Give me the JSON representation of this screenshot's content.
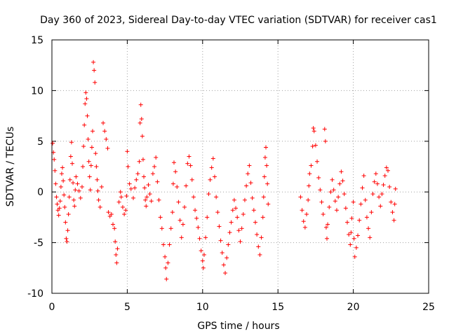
{
  "chart_data": {
    "type": "scatter",
    "title": "Day 360 of 2023, Sidereal Day-to-day VTEC variation (SDTVAR) for receiver cas1",
    "xlabel": "GPS time / hours",
    "ylabel": "SDTVAR / TECUs",
    "xlim": [
      0,
      25
    ],
    "ylim": [
      -10,
      15
    ],
    "xticks": [
      "0",
      "5",
      "10",
      "15",
      "20",
      "25"
    ],
    "yticks": [
      "-10",
      "-5",
      "0",
      "5",
      "10",
      "15"
    ],
    "grid": true,
    "marker": "+",
    "color": "#ff0000",
    "series": [
      {
        "name": "SDTVAR",
        "points": [
          [
            0.05,
            4.8
          ],
          [
            0.1,
            3.9
          ],
          [
            0.15,
            3.2
          ],
          [
            0.2,
            2.1
          ],
          [
            0.25,
            0.8
          ],
          [
            0.3,
            -0.5
          ],
          [
            0.35,
            -1.2
          ],
          [
            0.4,
            -1.8
          ],
          [
            0.45,
            -2.3
          ],
          [
            0.5,
            -1.6
          ],
          [
            0.55,
            -0.9
          ],
          [
            0.6,
            0.5
          ],
          [
            0.65,
            1.8
          ],
          [
            0.7,
            2.4
          ],
          [
            0.75,
            1.1
          ],
          [
            0.8,
            -0.3
          ],
          [
            0.85,
            -1.5
          ],
          [
            0.9,
            -3.0
          ],
          [
            0.95,
            -4.6
          ],
          [
            1.0,
            -4.9
          ],
          [
            1.05,
            -3.8
          ],
          [
            1.1,
            -2.2
          ],
          [
            1.15,
            -0.5
          ],
          [
            1.2,
            1.2
          ],
          [
            1.25,
            3.5
          ],
          [
            1.3,
            4.9
          ],
          [
            1.35,
            2.8
          ],
          [
            1.4,
            0.9
          ],
          [
            1.45,
            -0.8
          ],
          [
            1.5,
            -1.4
          ],
          [
            1.55,
            0.2
          ],
          [
            1.6,
            1.5
          ],
          [
            1.7,
            0.8
          ],
          [
            1.8,
            0.1
          ],
          [
            1.9,
            -0.6
          ],
          [
            2.0,
            0.5
          ],
          [
            2.05,
            2.5
          ],
          [
            2.1,
            4.5
          ],
          [
            2.15,
            6.6
          ],
          [
            2.2,
            8.7
          ],
          [
            2.25,
            9.8
          ],
          [
            2.3,
            9.2
          ],
          [
            2.35,
            7.5
          ],
          [
            2.4,
            5.2
          ],
          [
            2.45,
            3.0
          ],
          [
            2.5,
            1.5
          ],
          [
            2.55,
            0.2
          ],
          [
            2.6,
            2.6
          ],
          [
            2.65,
            4.4
          ],
          [
            2.7,
            6.0
          ],
          [
            2.75,
            12.8
          ],
          [
            2.8,
            12.0
          ],
          [
            2.85,
            10.8
          ],
          [
            2.9,
            3.8
          ],
          [
            2.95,
            2.5
          ],
          [
            3.0,
            1.2
          ],
          [
            3.05,
            0.1
          ],
          [
            3.1,
            -0.8
          ],
          [
            3.2,
            -1.5
          ],
          [
            3.3,
            0.5
          ],
          [
            3.4,
            6.8
          ],
          [
            3.5,
            6.0
          ],
          [
            3.6,
            5.2
          ],
          [
            3.7,
            4.3
          ],
          [
            3.75,
            -2.0
          ],
          [
            3.85,
            -2.4
          ],
          [
            3.95,
            -2.2
          ],
          [
            4.05,
            -3.2
          ],
          [
            4.15,
            -3.6
          ],
          [
            4.2,
            -4.9
          ],
          [
            4.25,
            -6.2
          ],
          [
            4.3,
            -7.0
          ],
          [
            4.35,
            -5.6
          ],
          [
            4.45,
            -1.0
          ],
          [
            4.55,
            0.0
          ],
          [
            4.6,
            -0.5
          ],
          [
            4.7,
            -1.5
          ],
          [
            4.8,
            -2.2
          ],
          [
            4.9,
            -1.8
          ],
          [
            4.95,
            -0.4
          ],
          [
            5.0,
            4.0
          ],
          [
            5.05,
            2.5
          ],
          [
            5.15,
            0.8
          ],
          [
            5.25,
            0.3
          ],
          [
            5.4,
            -0.6
          ],
          [
            5.5,
            0.4
          ],
          [
            5.6,
            1.2
          ],
          [
            5.7,
            1.8
          ],
          [
            5.8,
            3.0
          ],
          [
            5.85,
            6.8
          ],
          [
            5.9,
            8.6
          ],
          [
            5.95,
            7.2
          ],
          [
            6.0,
            5.5
          ],
          [
            6.05,
            3.2
          ],
          [
            6.1,
            1.5
          ],
          [
            6.15,
            0.4
          ],
          [
            6.2,
            -0.8
          ],
          [
            6.25,
            -1.4
          ],
          [
            6.3,
            -0.5
          ],
          [
            6.4,
            0.7
          ],
          [
            6.5,
            -0.2
          ],
          [
            6.6,
            -0.9
          ],
          [
            6.7,
            1.8
          ],
          [
            6.8,
            2.5
          ],
          [
            6.9,
            3.4
          ],
          [
            7.0,
            1.0
          ],
          [
            7.1,
            -0.8
          ],
          [
            7.2,
            -2.5
          ],
          [
            7.3,
            -3.6
          ],
          [
            7.4,
            -5.2
          ],
          [
            7.5,
            -6.4
          ],
          [
            7.55,
            -7.5
          ],
          [
            7.6,
            -8.6
          ],
          [
            7.7,
            -7.0
          ],
          [
            7.8,
            -5.2
          ],
          [
            7.9,
            -3.6
          ],
          [
            8.0,
            -2.0
          ],
          [
            8.05,
            0.8
          ],
          [
            8.1,
            2.9
          ],
          [
            8.2,
            2.0
          ],
          [
            8.3,
            0.5
          ],
          [
            8.4,
            -1.0
          ],
          [
            8.5,
            -2.8
          ],
          [
            8.6,
            -4.5
          ],
          [
            8.7,
            -3.2
          ],
          [
            8.8,
            -1.5
          ],
          [
            8.9,
            0.6
          ],
          [
            9.0,
            2.8
          ],
          [
            9.1,
            3.5
          ],
          [
            9.2,
            2.6
          ],
          [
            9.3,
            1.2
          ],
          [
            9.4,
            -0.5
          ],
          [
            9.5,
            -1.8
          ],
          [
            9.6,
            -2.6
          ],
          [
            9.7,
            -3.5
          ],
          [
            9.8,
            -4.6
          ],
          [
            9.9,
            -5.8
          ],
          [
            10.0,
            -6.8
          ],
          [
            10.05,
            -7.5
          ],
          [
            10.1,
            -6.2
          ],
          [
            10.2,
            -4.5
          ],
          [
            10.3,
            -2.5
          ],
          [
            10.4,
            -0.2
          ],
          [
            10.5,
            1.2
          ],
          [
            10.6,
            2.4
          ],
          [
            10.7,
            3.3
          ],
          [
            10.8,
            1.5
          ],
          [
            10.9,
            -0.5
          ],
          [
            11.0,
            -2.0
          ],
          [
            11.1,
            -3.4
          ],
          [
            11.2,
            -4.8
          ],
          [
            11.3,
            -6.0
          ],
          [
            11.4,
            -7.2
          ],
          [
            11.5,
            -8.0
          ],
          [
            11.6,
            -6.5
          ],
          [
            11.7,
            -5.2
          ],
          [
            11.8,
            -4.0
          ],
          [
            11.9,
            -3.0
          ],
          [
            12.0,
            -1.8
          ],
          [
            12.1,
            -0.8
          ],
          [
            12.2,
            -1.6
          ],
          [
            12.3,
            -2.5
          ],
          [
            12.4,
            -3.8
          ],
          [
            12.5,
            -4.9
          ],
          [
            12.6,
            -3.6
          ],
          [
            12.7,
            -2.2
          ],
          [
            12.8,
            -0.8
          ],
          [
            12.9,
            0.6
          ],
          [
            13.0,
            1.8
          ],
          [
            13.1,
            2.6
          ],
          [
            13.2,
            0.9
          ],
          [
            13.3,
            -0.6
          ],
          [
            13.4,
            -1.8
          ],
          [
            13.5,
            -3.0
          ],
          [
            13.6,
            -4.2
          ],
          [
            13.7,
            -5.4
          ],
          [
            13.8,
            -6.2
          ],
          [
            13.9,
            -4.5
          ],
          [
            14.0,
            -2.5
          ],
          [
            14.05,
            -0.5
          ],
          [
            14.1,
            1.5
          ],
          [
            14.15,
            3.4
          ],
          [
            14.2,
            4.4
          ],
          [
            14.25,
            2.6
          ],
          [
            14.3,
            0.8
          ],
          [
            14.35,
            -1.2
          ],
          [
            16.5,
            -0.5
          ],
          [
            16.6,
            -1.8
          ],
          [
            16.7,
            -2.9
          ],
          [
            16.8,
            -3.5
          ],
          [
            16.9,
            -2.2
          ],
          [
            17.0,
            -0.8
          ],
          [
            17.05,
            0.6
          ],
          [
            17.1,
            1.8
          ],
          [
            17.2,
            2.6
          ],
          [
            17.3,
            4.5
          ],
          [
            17.35,
            6.3
          ],
          [
            17.4,
            6.0
          ],
          [
            17.5,
            4.6
          ],
          [
            17.6,
            3.0
          ],
          [
            17.7,
            1.4
          ],
          [
            17.8,
            0.2
          ],
          [
            17.9,
            -1.0
          ],
          [
            18.0,
            -2.2
          ],
          [
            18.1,
            6.2
          ],
          [
            18.15,
            5.0
          ],
          [
            18.2,
            -3.5
          ],
          [
            18.25,
            -4.6
          ],
          [
            18.3,
            -3.2
          ],
          [
            18.4,
            -1.5
          ],
          [
            18.5,
            0.0
          ],
          [
            18.6,
            1.2
          ],
          [
            18.7,
            0.2
          ],
          [
            18.8,
            -0.9
          ],
          [
            18.9,
            -1.8
          ],
          [
            19.0,
            -0.5
          ],
          [
            19.1,
            0.8
          ],
          [
            19.2,
            2.0
          ],
          [
            19.3,
            1.1
          ],
          [
            19.4,
            -0.2
          ],
          [
            19.5,
            -1.6
          ],
          [
            19.6,
            -3.0
          ],
          [
            19.7,
            -4.2
          ],
          [
            19.8,
            -5.2
          ],
          [
            19.85,
            -4.0
          ],
          [
            19.9,
            -2.6
          ],
          [
            20.0,
            -1.0
          ],
          [
            20.05,
            -4.6
          ],
          [
            20.1,
            -6.4
          ],
          [
            20.2,
            -5.5
          ],
          [
            20.3,
            -4.3
          ],
          [
            20.4,
            -2.8
          ],
          [
            20.5,
            -1.2
          ],
          [
            20.6,
            0.4
          ],
          [
            20.7,
            1.6
          ],
          [
            20.8,
            -0.8
          ],
          [
            20.9,
            -2.5
          ],
          [
            21.0,
            -3.6
          ],
          [
            21.1,
            -4.5
          ],
          [
            21.2,
            -2.0
          ],
          [
            21.3,
            -0.2
          ],
          [
            21.4,
            1.0
          ],
          [
            21.5,
            1.8
          ],
          [
            21.6,
            0.8
          ],
          [
            21.7,
            -0.5
          ],
          [
            21.8,
            -1.4
          ],
          [
            21.9,
            -0.2
          ],
          [
            22.0,
            0.7
          ],
          [
            22.1,
            1.6
          ],
          [
            22.2,
            2.4
          ],
          [
            22.3,
            2.1
          ],
          [
            22.4,
            0.5
          ],
          [
            22.5,
            -1.0
          ],
          [
            22.6,
            -2.0
          ],
          [
            22.7,
            -2.8
          ],
          [
            22.75,
            -1.2
          ],
          [
            22.8,
            0.3
          ]
        ]
      }
    ]
  }
}
